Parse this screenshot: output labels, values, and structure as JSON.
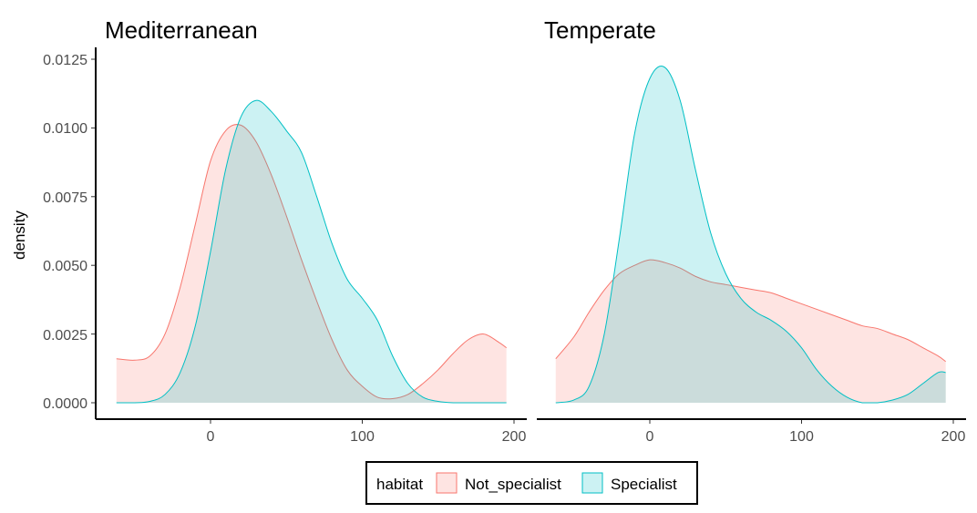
{
  "chart_data": {
    "type": "area",
    "chart_kind": "density-faceted",
    "ylabel": "density",
    "xlabel": "",
    "ylim": [
      0,
      0.0125
    ],
    "y_ticks": [
      "0.0000",
      "0.0025",
      "0.0050",
      "0.0075",
      "0.0100",
      "0.0125"
    ],
    "x_ticks": [
      0,
      100,
      200
    ],
    "legend": {
      "title": "habitat",
      "placement": "bottom",
      "entries": [
        "Not_specialist",
        "Specialist"
      ]
    },
    "colors": {
      "Not_specialist": "#F8766D",
      "Specialist": "#00BFC4"
    },
    "grid": false,
    "facets": [
      {
        "title": "Mediterranean",
        "xlim": [
          -70,
          205
        ],
        "series": [
          {
            "name": "Not_specialist",
            "x": [
              -62,
              -50,
              -40,
              -30,
              -20,
              -10,
              0,
              10,
              20,
              30,
              40,
              50,
              60,
              70,
              80,
              90,
              100,
              110,
              120,
              130,
              140,
              150,
              160,
              170,
              180,
              190,
              195
            ],
            "values": [
              0.0016,
              0.00155,
              0.0017,
              0.0025,
              0.0042,
              0.0065,
              0.0088,
              0.0099,
              0.0101,
              0.0095,
              0.0083,
              0.0068,
              0.0052,
              0.0037,
              0.0023,
              0.0012,
              0.0006,
              0.0002,
              0.00015,
              0.0003,
              0.0007,
              0.0012,
              0.0018,
              0.0023,
              0.0025,
              0.0022,
              0.002
            ]
          },
          {
            "name": "Specialist",
            "x": [
              -62,
              -50,
              -40,
              -30,
              -20,
              -10,
              0,
              10,
              20,
              30,
              40,
              50,
              60,
              70,
              80,
              90,
              100,
              110,
              120,
              130,
              140,
              150,
              160,
              170,
              180,
              190,
              195
            ],
            "values": [
              0.0,
              0.0,
              5e-05,
              0.0003,
              0.0011,
              0.0028,
              0.0055,
              0.0085,
              0.0104,
              0.011,
              0.0106,
              0.0099,
              0.0091,
              0.0075,
              0.0058,
              0.0045,
              0.0038,
              0.003,
              0.0017,
              0.0007,
              0.0002,
              5e-05,
              0.0,
              0.0,
              0.0,
              0.0,
              0.0
            ]
          }
        ]
      },
      {
        "title": "Temperate",
        "xlim": [
          -70,
          205
        ],
        "series": [
          {
            "name": "Not_specialist",
            "x": [
              -62,
              -50,
              -40,
              -30,
              -20,
              -10,
              0,
              10,
              20,
              30,
              40,
              50,
              60,
              70,
              80,
              90,
              100,
              110,
              120,
              130,
              140,
              150,
              160,
              170,
              180,
              190,
              195
            ],
            "values": [
              0.0016,
              0.0024,
              0.0033,
              0.0041,
              0.0047,
              0.005,
              0.0052,
              0.0051,
              0.0049,
              0.0046,
              0.0044,
              0.0043,
              0.0042,
              0.0041,
              0.004,
              0.0038,
              0.0036,
              0.0034,
              0.0032,
              0.003,
              0.0028,
              0.0027,
              0.0025,
              0.0023,
              0.002,
              0.0017,
              0.0015
            ]
          },
          {
            "name": "Specialist",
            "x": [
              -62,
              -50,
              -40,
              -30,
              -20,
              -10,
              0,
              10,
              20,
              30,
              40,
              50,
              60,
              70,
              80,
              90,
              100,
              110,
              120,
              130,
              140,
              150,
              160,
              170,
              180,
              190,
              195
            ],
            "values": [
              0.0,
              0.0001,
              0.0006,
              0.0025,
              0.006,
              0.0098,
              0.0118,
              0.0122,
              0.011,
              0.0085,
              0.0062,
              0.0047,
              0.0038,
              0.0033,
              0.003,
              0.0026,
              0.002,
              0.0012,
              0.0006,
              0.0002,
              0.0,
              0.0,
              0.0001,
              0.0003,
              0.0007,
              0.0011,
              0.0011
            ]
          }
        ]
      }
    ]
  }
}
